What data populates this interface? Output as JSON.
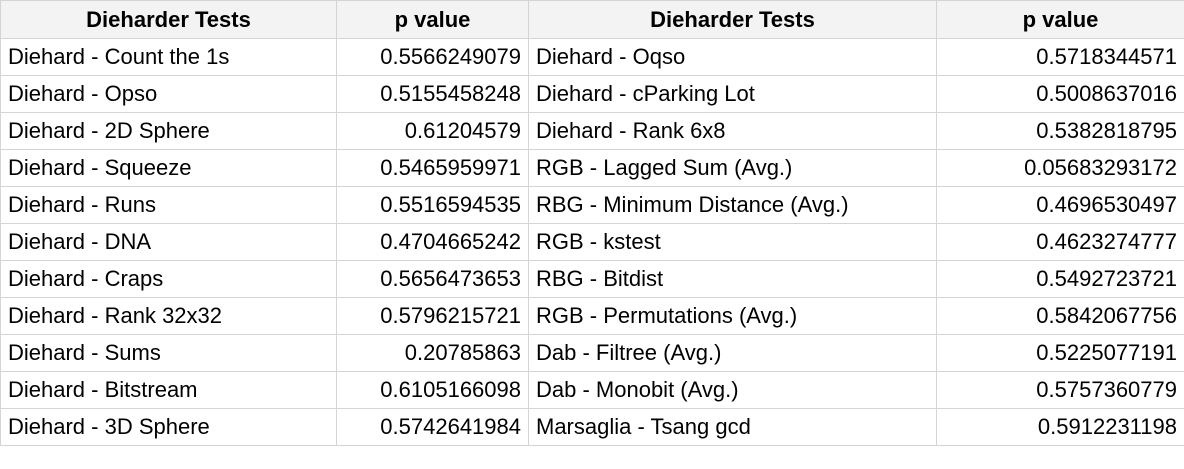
{
  "headers": [
    "Dieharder Tests",
    "p value",
    "Dieharder Tests",
    "p value"
  ],
  "rows": [
    [
      "Diehard - Count the 1s",
      "0.5566249079",
      "Diehard - Oqso",
      "0.5718344571"
    ],
    [
      "Diehard - Opso",
      "0.5155458248",
      "Diehard - cParking Lot",
      "0.5008637016"
    ],
    [
      "Diehard - 2D Sphere",
      "0.61204579",
      "Diehard - Rank 6x8",
      "0.5382818795"
    ],
    [
      "Diehard - Squeeze",
      "0.5465959971",
      "RGB - Lagged Sum (Avg.)",
      "0.05683293172"
    ],
    [
      "Diehard - Runs",
      "0.5516594535",
      "RBG - Minimum Distance (Avg.)",
      "0.4696530497"
    ],
    [
      "Diehard - DNA",
      "0.4704665242",
      "RGB - kstest",
      "0.4623274777"
    ],
    [
      "Diehard - Craps",
      "0.5656473653",
      "RBG - Bitdist",
      "0.5492723721"
    ],
    [
      "Diehard - Rank 32x32",
      "0.5796215721",
      "RGB - Permutations (Avg.)",
      "0.5842067756"
    ],
    [
      "Diehard - Sums",
      "0.20785863",
      "Dab - Filtree (Avg.)",
      "0.5225077191"
    ],
    [
      "Diehard - Bitstream",
      "0.6105166098",
      "Dab - Monobit (Avg.)",
      "0.5757360779"
    ],
    [
      "Diehard - 3D Sphere",
      "0.5742641984",
      "Marsaglia - Tsang gcd",
      "0.5912231198"
    ]
  ]
}
